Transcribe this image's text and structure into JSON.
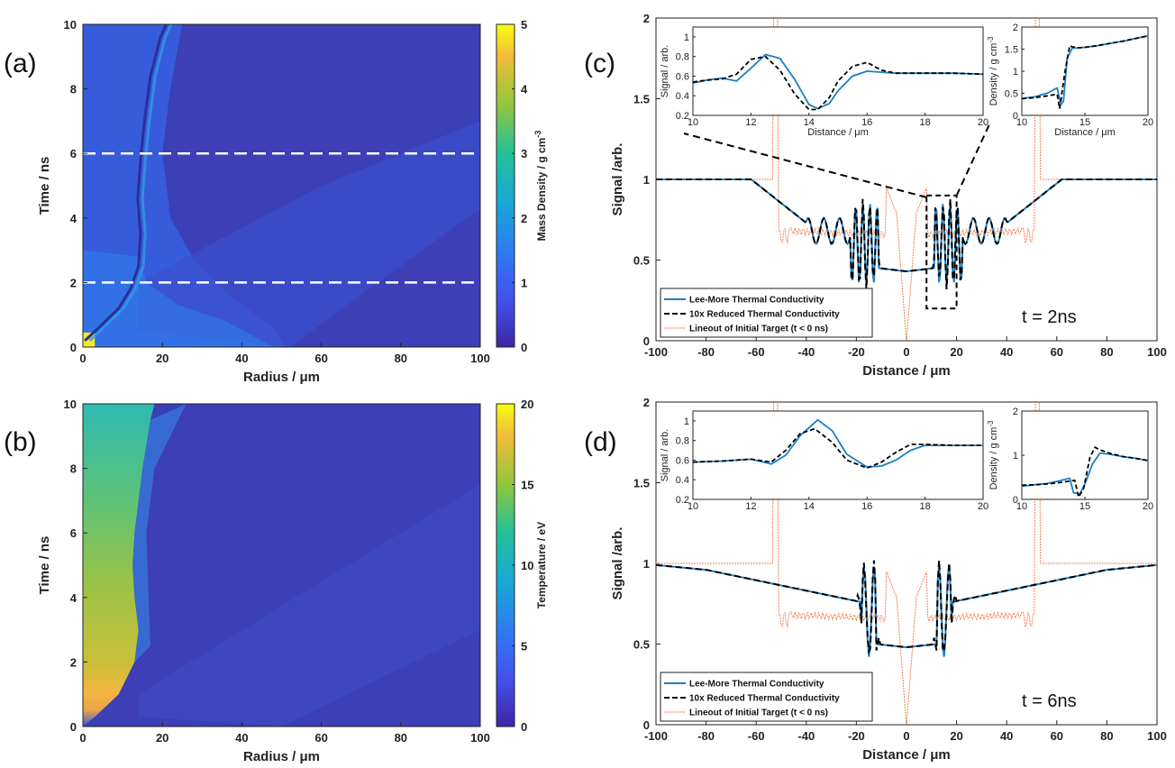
{
  "colors": {
    "lee_more": "#1a7fc4",
    "reduced": "#000000",
    "initial": "#f08050",
    "map_bg": "#3b3fb4"
  },
  "panel_labels": [
    "(a)",
    "(b)",
    "(c)",
    "(d)"
  ],
  "chart_data": [
    {
      "id": "a",
      "type": "heatmap",
      "xlabel": "Radius / μm",
      "ylabel": "Time / ns",
      "xlim": [
        0,
        100
      ],
      "ylim": [
        0,
        10
      ],
      "xticks": [
        0,
        20,
        40,
        60,
        80,
        100
      ],
      "yticks": [
        0,
        2,
        4,
        6,
        8,
        10
      ],
      "colorbar": {
        "label": "Mass Density / g cm",
        "label_sup": "-3",
        "range": [
          0,
          5
        ],
        "ticks": [
          0,
          1,
          2,
          3,
          4,
          5
        ]
      },
      "guide_lines_time": [
        2,
        6
      ]
    },
    {
      "id": "b",
      "type": "heatmap",
      "xlabel": "Radius / μm",
      "ylabel": "Time / ns",
      "xlim": [
        0,
        100
      ],
      "ylim": [
        0,
        10
      ],
      "xticks": [
        0,
        20,
        40,
        60,
        80,
        100
      ],
      "yticks": [
        0,
        2,
        4,
        6,
        8,
        10
      ],
      "colorbar": {
        "label": "Temperature / eV",
        "label_sup": "",
        "range": [
          0,
          20
        ],
        "ticks": [
          0,
          5,
          10,
          15,
          20
        ]
      }
    },
    {
      "id": "c",
      "type": "line",
      "xlabel": "Distance / μm",
      "ylabel": "Signal /arb.",
      "xlim": [
        -100,
        100
      ],
      "ylim": [
        0,
        2
      ],
      "xticks": [
        -100,
        -80,
        -60,
        -40,
        -20,
        0,
        20,
        40,
        60,
        80,
        100
      ],
      "yticks": [
        0,
        0.5,
        1,
        1.5,
        2
      ],
      "annotation": "t = 2ns",
      "legend": [
        "Lee-More Thermal Conductivity",
        "10x Reduced Thermal Conductivity",
        "Lineout of Initial Target (t < 0 ns)"
      ],
      "legend_position": "bottom-left",
      "zoom_box": {
        "x": [
          8,
          20
        ],
        "y": [
          0.2,
          0.9
        ]
      },
      "insets": [
        {
          "type": "line",
          "xlabel": "Distance / μm",
          "ylabel": "Signal / arb.",
          "xlim": [
            10,
            20
          ],
          "ylim": [
            0.2,
            1.1
          ],
          "xticks": [
            10,
            12,
            14,
            16,
            18,
            20
          ],
          "yticks": [
            0.2,
            0.4,
            0.6,
            0.8,
            1
          ],
          "series": [
            {
              "name": "Lee-More",
              "x": [
                10,
                10.5,
                11,
                11.5,
                12,
                12.5,
                13,
                13.5,
                14,
                14.3,
                14.7,
                15,
                15.5,
                16,
                16.5,
                17,
                18,
                19,
                20
              ],
              "y": [
                0.53,
                0.56,
                0.58,
                0.55,
                0.68,
                0.82,
                0.78,
                0.57,
                0.31,
                0.27,
                0.32,
                0.45,
                0.6,
                0.65,
                0.64,
                0.63,
                0.63,
                0.63,
                0.62
              ]
            },
            {
              "name": "10x Reduced",
              "x": [
                10,
                10.5,
                11,
                11.5,
                12,
                12.5,
                13,
                13.5,
                14,
                14.3,
                14.7,
                15,
                15.5,
                16,
                16.5,
                17,
                18,
                19,
                20
              ],
              "y": [
                0.54,
                0.56,
                0.57,
                0.62,
                0.77,
                0.8,
                0.66,
                0.42,
                0.26,
                0.26,
                0.38,
                0.55,
                0.7,
                0.74,
                0.66,
                0.63,
                0.63,
                0.63,
                0.62
              ]
            }
          ]
        },
        {
          "type": "line",
          "xlabel": "Distance / μm",
          "ylabel": "Density / g cm",
          "ylabel_sup": "-3",
          "xlim": [
            10,
            20
          ],
          "ylim": [
            0,
            2
          ],
          "xticks": [
            10,
            15,
            20
          ],
          "yticks": [
            0,
            0.5,
            1,
            1.5,
            2
          ],
          "series": [
            {
              "name": "Lee-More",
              "x": [
                10,
                11,
                12,
                12.8,
                13.1,
                13.3,
                13.6,
                14,
                14.5,
                15,
                16,
                17,
                18,
                19,
                20
              ],
              "y": [
                0.38,
                0.42,
                0.5,
                0.62,
                0.25,
                0.32,
                1.3,
                1.52,
                1.53,
                1.54,
                1.58,
                1.63,
                1.68,
                1.74,
                1.8
              ]
            },
            {
              "name": "10x Reduced",
              "x": [
                10,
                11,
                12,
                12.8,
                13.0,
                13.4,
                13.8,
                14,
                14.5,
                15,
                16,
                17,
                18,
                19,
                20
              ],
              "y": [
                0.38,
                0.4,
                0.44,
                0.48,
                0.15,
                0.95,
                1.58,
                1.55,
                1.53,
                1.54,
                1.58,
                1.63,
                1.68,
                1.74,
                1.8
              ]
            }
          ]
        }
      ]
    },
    {
      "id": "d",
      "type": "line",
      "xlabel": "Distance / μm",
      "ylabel": "Signal /arb.",
      "xlim": [
        -100,
        100
      ],
      "ylim": [
        0,
        2
      ],
      "xticks": [
        -100,
        -80,
        -60,
        -40,
        -20,
        0,
        20,
        40,
        60,
        80,
        100
      ],
      "yticks": [
        0,
        0.5,
        1,
        1.5,
        2
      ],
      "annotation": "t = 6ns",
      "legend": [
        "Lee-More Thermal Conductivity",
        "10x Reduced Thermal Conductivity",
        "Lineout of Initial Target (t < 0 ns)"
      ],
      "legend_position": "bottom-left",
      "insets": [
        {
          "type": "line",
          "xlabel": "",
          "ylabel": "Signal / arb.",
          "xlim": [
            10,
            20
          ],
          "ylim": [
            0.2,
            1.1
          ],
          "xticks": [
            10,
            12,
            14,
            16,
            18,
            20
          ],
          "yticks": [
            0.2,
            0.4,
            0.6,
            0.8,
            1
          ],
          "series": [
            {
              "name": "Lee-More",
              "x": [
                10,
                11,
                12,
                12.7,
                13.2,
                13.7,
                14.3,
                14.8,
                15.3,
                16,
                16.5,
                17,
                17.5,
                18,
                19,
                20
              ],
              "y": [
                0.58,
                0.59,
                0.61,
                0.56,
                0.65,
                0.85,
                1.01,
                0.9,
                0.66,
                0.53,
                0.54,
                0.6,
                0.7,
                0.75,
                0.75,
                0.75
              ]
            },
            {
              "name": "10x Reduced",
              "x": [
                10,
                11,
                12,
                12.7,
                13.2,
                13.7,
                14.2,
                14.8,
                15.3,
                16,
                16.5,
                17,
                17.5,
                18,
                19,
                20
              ],
              "y": [
                0.58,
                0.59,
                0.61,
                0.58,
                0.7,
                0.87,
                0.92,
                0.78,
                0.6,
                0.52,
                0.58,
                0.68,
                0.76,
                0.76,
                0.75,
                0.75
              ]
            }
          ]
        },
        {
          "type": "line",
          "xlabel": "",
          "ylabel": "Density / g cm",
          "ylabel_sup": "-3",
          "xlim": [
            10,
            20
          ],
          "ylim": [
            0,
            2
          ],
          "xticks": [
            10,
            15,
            20
          ],
          "yticks": [
            0,
            1,
            2
          ],
          "series": [
            {
              "name": "Lee-More",
              "x": [
                10,
                11,
                12,
                13,
                13.8,
                14.1,
                14.6,
                15,
                15.6,
                16.2,
                17,
                18,
                19,
                20
              ],
              "y": [
                0.3,
                0.33,
                0.36,
                0.42,
                0.48,
                0.15,
                0.12,
                0.35,
                0.8,
                1.05,
                1.02,
                0.97,
                0.93,
                0.88
              ]
            },
            {
              "name": "10x Reduced",
              "x": [
                10,
                11,
                12,
                13,
                14.2,
                14.5,
                14.9,
                15.4,
                15.8,
                16.2,
                17,
                18,
                19,
                20
              ],
              "y": [
                0.32,
                0.33,
                0.35,
                0.38,
                0.43,
                0.05,
                0.25,
                0.95,
                1.18,
                1.12,
                1.04,
                0.97,
                0.93,
                0.88
              ]
            }
          ]
        }
      ]
    }
  ]
}
